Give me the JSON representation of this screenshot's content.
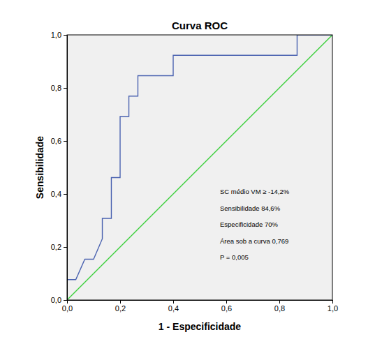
{
  "chart_data": {
    "type": "line",
    "title": "Curva ROC",
    "x_label": "1 - Especificidade",
    "y_label": "Sensibilidade",
    "xlim": [
      0,
      1
    ],
    "ylim": [
      0,
      1
    ],
    "xticks": [
      {
        "value": 0,
        "label": "0,0"
      },
      {
        "value": 0.2,
        "label": "0,2"
      },
      {
        "value": 0.4,
        "label": "0,4"
      },
      {
        "value": 0.6,
        "label": "0,6"
      },
      {
        "value": 0.8,
        "label": "0,8"
      },
      {
        "value": 1,
        "label": "1,0"
      }
    ],
    "yticks": [
      {
        "value": 0,
        "label": "0,0"
      },
      {
        "value": 0.2,
        "label": "0,2"
      },
      {
        "value": 0.4,
        "label": "0,4"
      },
      {
        "value": 0.6,
        "label": "0,6"
      },
      {
        "value": 0.8,
        "label": "0,8"
      },
      {
        "value": 1,
        "label": "1,0"
      }
    ],
    "grid": false,
    "series": [
      {
        "color": "#4a62b0",
        "line_style": "solid",
        "x": [
          0,
          0,
          0.033,
          0.067,
          0.1,
          0.133,
          0.133,
          0.167,
          0.167,
          0.2,
          0.2,
          0.233,
          0.233,
          0.267,
          0.267,
          0.4,
          0.4,
          0.867,
          0.867,
          1.0
        ],
        "values": [
          0,
          0.077,
          0.077,
          0.154,
          0.154,
          0.231,
          0.308,
          0.308,
          0.462,
          0.462,
          0.692,
          0.692,
          0.769,
          0.769,
          0.846,
          0.846,
          0.923,
          0.923,
          1.0,
          1.0
        ]
      },
      {
        "color": "#3ccf3c",
        "line_style": "solid",
        "x": [
          0,
          1
        ],
        "values": [
          0,
          1
        ]
      }
    ],
    "annotations": [
      "SC médio VM ≥ -14,2%",
      "Sensibilidade 84,6%",
      "Especificidade 70%",
      "Área sob a curva 0,769",
      "P = 0,005"
    ]
  }
}
